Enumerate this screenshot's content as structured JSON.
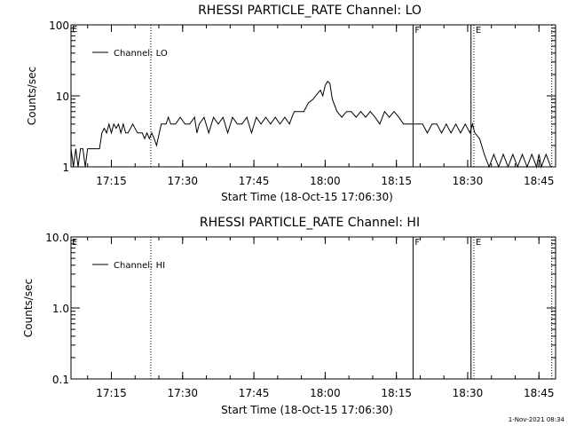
{
  "footer_date": "1-Nov-2021 08:34",
  "chart_data": [
    {
      "type": "line",
      "title": "RHESSI PARTICLE_RATE Channel: LO",
      "xlabel": "Start Time (18-Oct-15 17:06:30)",
      "ylabel": "Counts/sec",
      "yscale": "log",
      "ylim": [
        1,
        100
      ],
      "yticks": [
        1,
        10,
        100
      ],
      "ytick_labels": [
        "1",
        "10",
        "100"
      ],
      "xlim_minutes": [
        0,
        102
      ],
      "xticks_minutes": [
        8.5,
        23.5,
        38.5,
        53.5,
        68.5,
        83.5,
        98.5
      ],
      "xtick_labels": [
        "17:15",
        "17:30",
        "17:45",
        "18:00",
        "18:15",
        "18:30",
        "18:45"
      ],
      "legend": "Channel: LO",
      "legend_position": "top-left",
      "series": [
        {
          "name": "Channel: LO",
          "x_minutes": [
            0,
            0.5,
            1,
            1.5,
            2,
            2.5,
            3,
            3.5,
            4,
            5,
            6,
            6.5,
            7,
            7.5,
            8,
            8.5,
            9,
            9.5,
            10,
            10.5,
            11,
            11.5,
            12,
            13,
            14,
            15,
            15.5,
            16,
            16.5,
            17,
            17.5,
            18,
            19,
            20,
            20.5,
            21,
            22,
            23,
            24,
            25,
            26,
            26.5,
            27,
            28,
            29,
            30,
            31,
            32,
            33,
            34,
            35,
            36,
            37,
            38,
            39,
            40,
            41,
            42,
            43,
            44,
            45,
            46,
            46.5,
            47,
            48,
            49,
            50,
            51,
            51.5,
            52,
            52.5,
            53,
            53.5,
            54,
            54.5,
            55,
            56,
            57,
            58,
            59,
            60,
            61,
            62,
            63,
            64,
            65,
            66,
            67,
            68,
            69,
            70,
            71,
            72,
            73,
            74,
            75,
            76,
            77,
            78,
            79,
            80,
            81,
            82,
            83,
            84,
            84.5,
            85,
            86,
            87,
            88,
            89,
            90,
            91,
            92,
            93,
            94,
            95,
            96,
            97,
            98,
            98.5,
            99,
            100,
            101
          ],
          "values": [
            1.8,
            1.0,
            1.8,
            1.0,
            1.8,
            1.8,
            1.0,
            1.8,
            1.8,
            1.8,
            1.8,
            3,
            3.5,
            3,
            4,
            3,
            4,
            3.5,
            4,
            3,
            4,
            3,
            3,
            4,
            3,
            3,
            2.5,
            3,
            2.5,
            3,
            2.5,
            2,
            4,
            4,
            5,
            4,
            4,
            5,
            4,
            4,
            5,
            3,
            4,
            5,
            3,
            5,
            4,
            5,
            3,
            5,
            4,
            4,
            5,
            3,
            5,
            4,
            5,
            4,
            5,
            4,
            5,
            4,
            5,
            6,
            6,
            6,
            8,
            9,
            10,
            11,
            12,
            10,
            14,
            16,
            15,
            9,
            6,
            5,
            6,
            6,
            5,
            6,
            5,
            6,
            5,
            4,
            6,
            5,
            6,
            5,
            4,
            4,
            4,
            4,
            4,
            3,
            4,
            4,
            3,
            4,
            3,
            4,
            3,
            4,
            3,
            4,
            3,
            2.5,
            1.5,
            1.0,
            1.5,
            1.0,
            1.5,
            1.0,
            1.5,
            1.0,
            1.5,
            1.0,
            1.5,
            1.0,
            1.5,
            1.0,
            1.5,
            1.0
          ]
        }
      ],
      "vlines": [
        {
          "x_minutes": 16.8,
          "style": "dotted",
          "label": ""
        },
        {
          "x_minutes": 72.0,
          "style": "solid",
          "label": "F"
        },
        {
          "x_minutes": 84.2,
          "style": "solid",
          "label": ""
        },
        {
          "x_minutes": 84.8,
          "style": "dotted",
          "label": "E"
        },
        {
          "x_minutes": 101.2,
          "style": "dotted",
          "label": ""
        }
      ],
      "corner_label": "E"
    },
    {
      "type": "line",
      "title": "RHESSI PARTICLE_RATE Channel: HI",
      "xlabel": "Start Time (18-Oct-15 17:06:30)",
      "ylabel": "Counts/sec",
      "yscale": "log",
      "ylim": [
        0.1,
        10
      ],
      "yticks": [
        0.1,
        1,
        10
      ],
      "ytick_labels": [
        "0.1",
        "1.0",
        "10.0"
      ],
      "xlim_minutes": [
        0,
        102
      ],
      "xticks_minutes": [
        8.5,
        23.5,
        38.5,
        53.5,
        68.5,
        83.5,
        98.5
      ],
      "xtick_labels": [
        "17:15",
        "17:30",
        "17:45",
        "18:00",
        "18:15",
        "18:30",
        "18:45"
      ],
      "legend": "Channel: HI",
      "legend_position": "top-left",
      "series": [
        {
          "name": "Channel: HI",
          "x_minutes": [],
          "values": []
        }
      ],
      "vlines": [
        {
          "x_minutes": 16.8,
          "style": "dotted",
          "label": ""
        },
        {
          "x_minutes": 72.0,
          "style": "solid",
          "label": "F"
        },
        {
          "x_minutes": 84.2,
          "style": "solid",
          "label": ""
        },
        {
          "x_minutes": 84.8,
          "style": "dotted",
          "label": "E"
        },
        {
          "x_minutes": 101.2,
          "style": "dotted",
          "label": ""
        }
      ],
      "corner_label": "E"
    }
  ]
}
